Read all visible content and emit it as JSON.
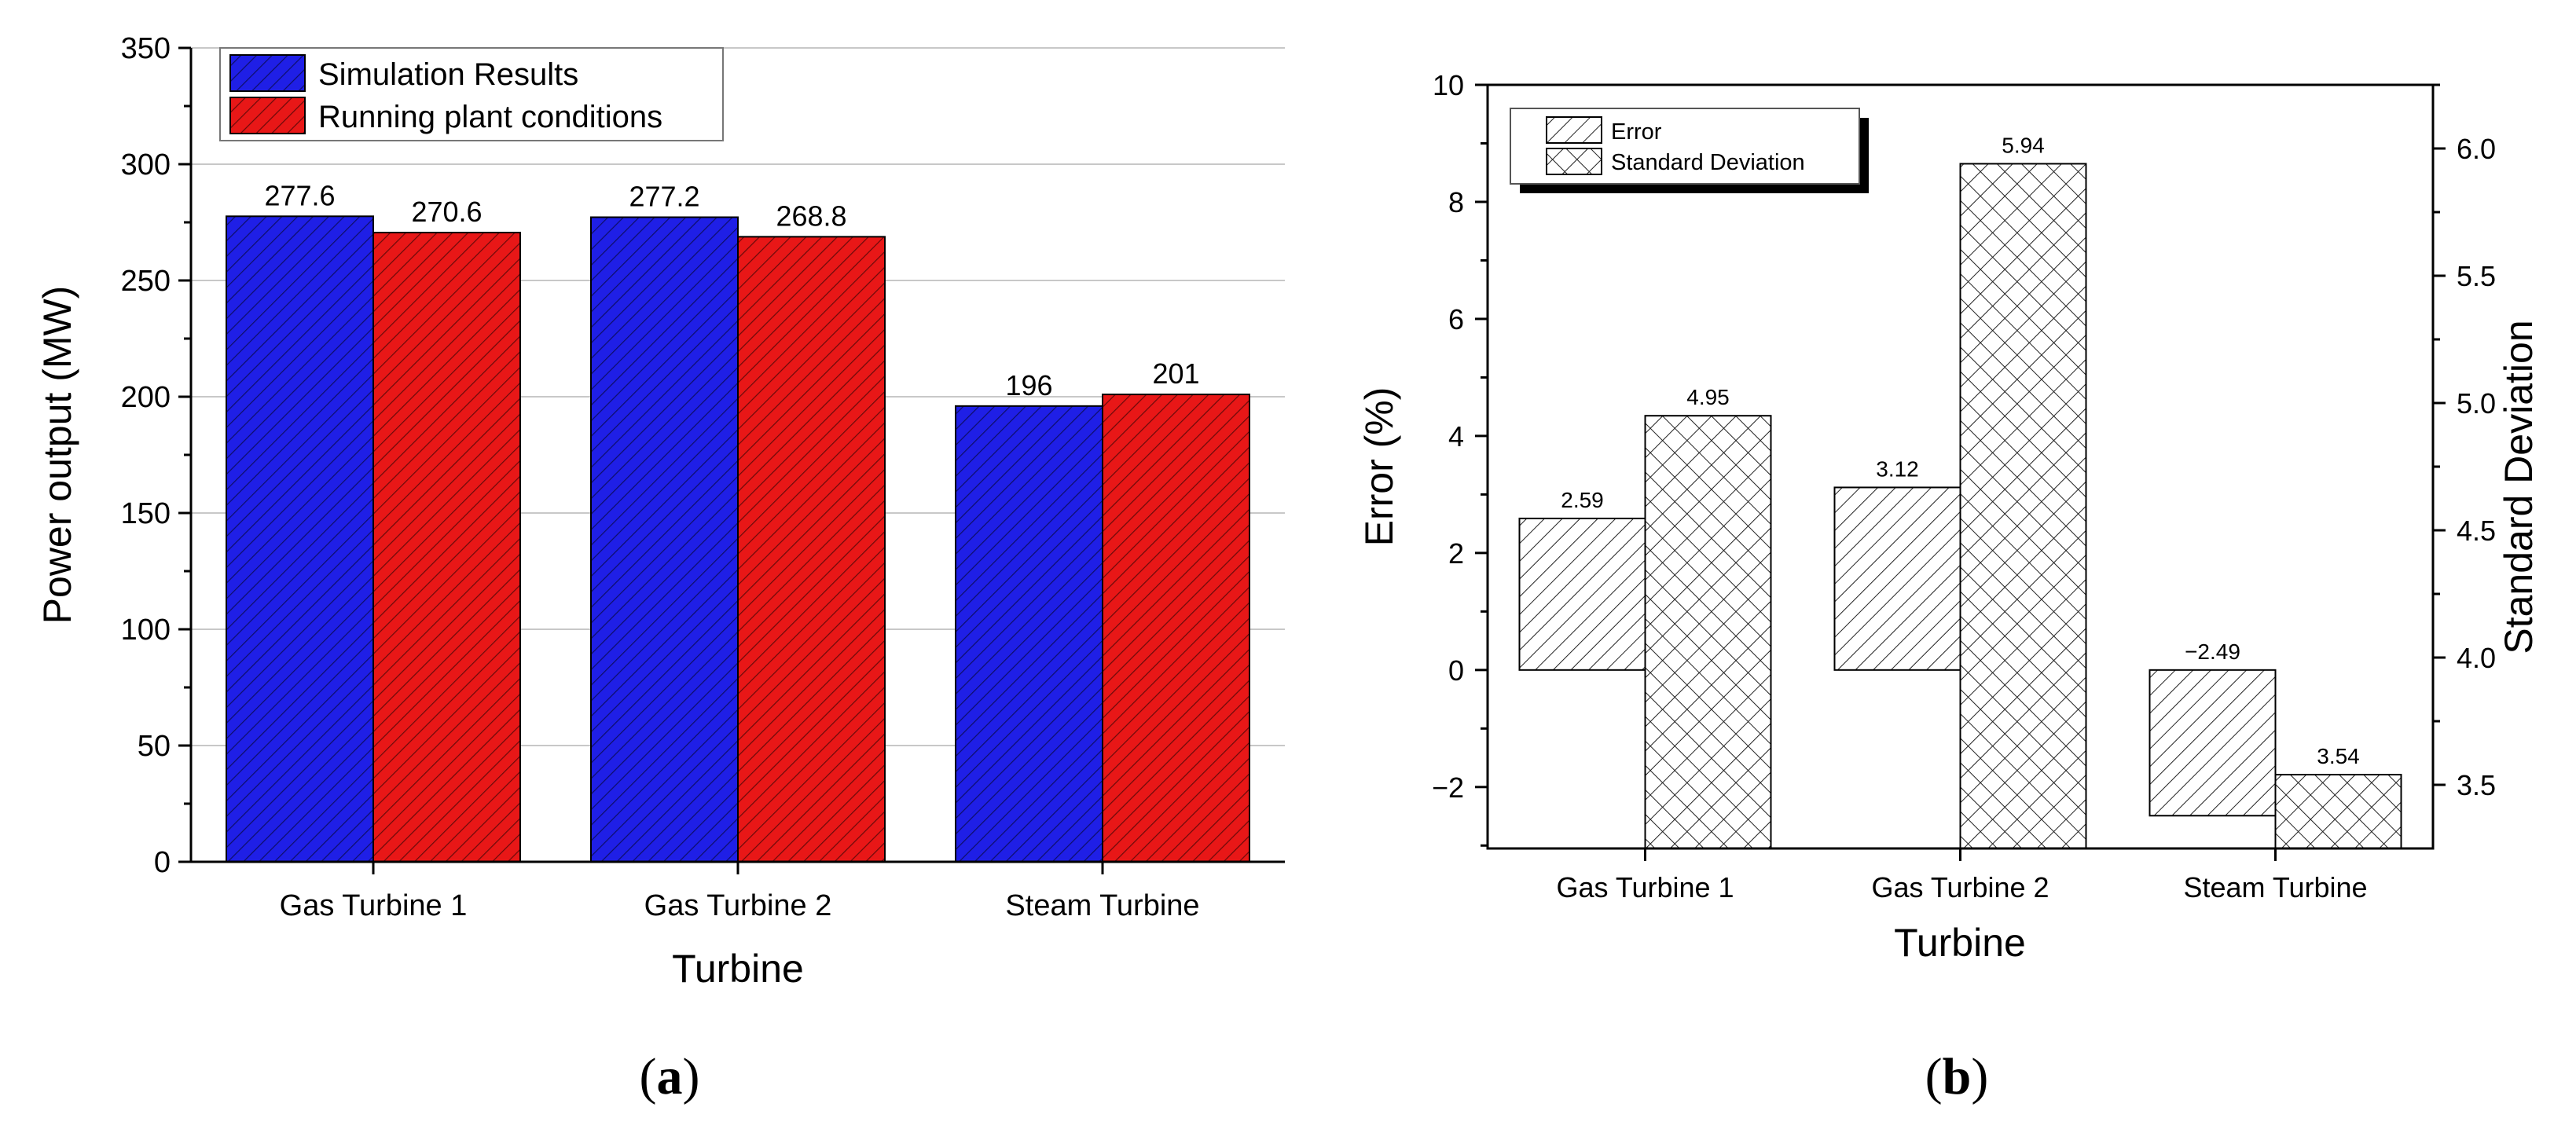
{
  "chart_data": [
    {
      "type": "bar",
      "categories": [
        "Gas Turbine 1",
        "Gas Turbine 2",
        "Steam Turbine"
      ],
      "series": [
        {
          "name": "Simulation Results",
          "values": [
            277.6,
            277.2,
            196
          ],
          "labels": [
            "277.6",
            "277.2",
            "196"
          ],
          "color": "#1f1fe6"
        },
        {
          "name": "Running plant conditions",
          "values": [
            270.6,
            268.8,
            201
          ],
          "labels": [
            "270.6",
            "268.8",
            "201"
          ],
          "color": "#e81717"
        }
      ],
      "xlabel": "Turbine",
      "ylabel": "Power output (MW)",
      "ylim": [
        0,
        350
      ],
      "yticks": [
        0,
        50,
        100,
        150,
        200,
        250,
        300,
        350
      ],
      "grid": true,
      "legend": "top-left",
      "caption": "a"
    },
    {
      "type": "bar",
      "categories": [
        "Gas Turbine 1",
        "Gas Turbine 2",
        "Steam Turbine"
      ],
      "series": [
        {
          "name": "Error",
          "axis": "left",
          "values": [
            2.59,
            3.12,
            -2.49
          ],
          "labels": [
            "2.59",
            "3.12",
            "−2.49"
          ],
          "pattern": "diagonal"
        },
        {
          "name": "Standard Deviation",
          "axis": "right",
          "values": [
            4.95,
            5.94,
            3.54
          ],
          "labels": [
            "4.95",
            "5.94",
            "3.54"
          ],
          "pattern": "crosshatch"
        }
      ],
      "xlabel": "Turbine",
      "ylabel": "Error (%)",
      "ylabel_right": "Standard Deviation",
      "ylim": [
        -3.05,
        10
      ],
      "yticks": [
        -2,
        0,
        2,
        4,
        6,
        8,
        10
      ],
      "ytick_labels": [
        "−2",
        "0",
        "2",
        "4",
        "6",
        "8",
        "10"
      ],
      "ylim_right": [
        3.25,
        6.25
      ],
      "yticks_right": [
        3.5,
        4.0,
        4.5,
        5.0,
        5.5,
        6.0
      ],
      "ytick_labels_right": [
        "3.5",
        "4.0",
        "4.5",
        "5.0",
        "5.5",
        "6.0"
      ],
      "grid": false,
      "legend": "top-left",
      "caption": "b"
    }
  ],
  "caption_parens": [
    "(",
    ")"
  ]
}
